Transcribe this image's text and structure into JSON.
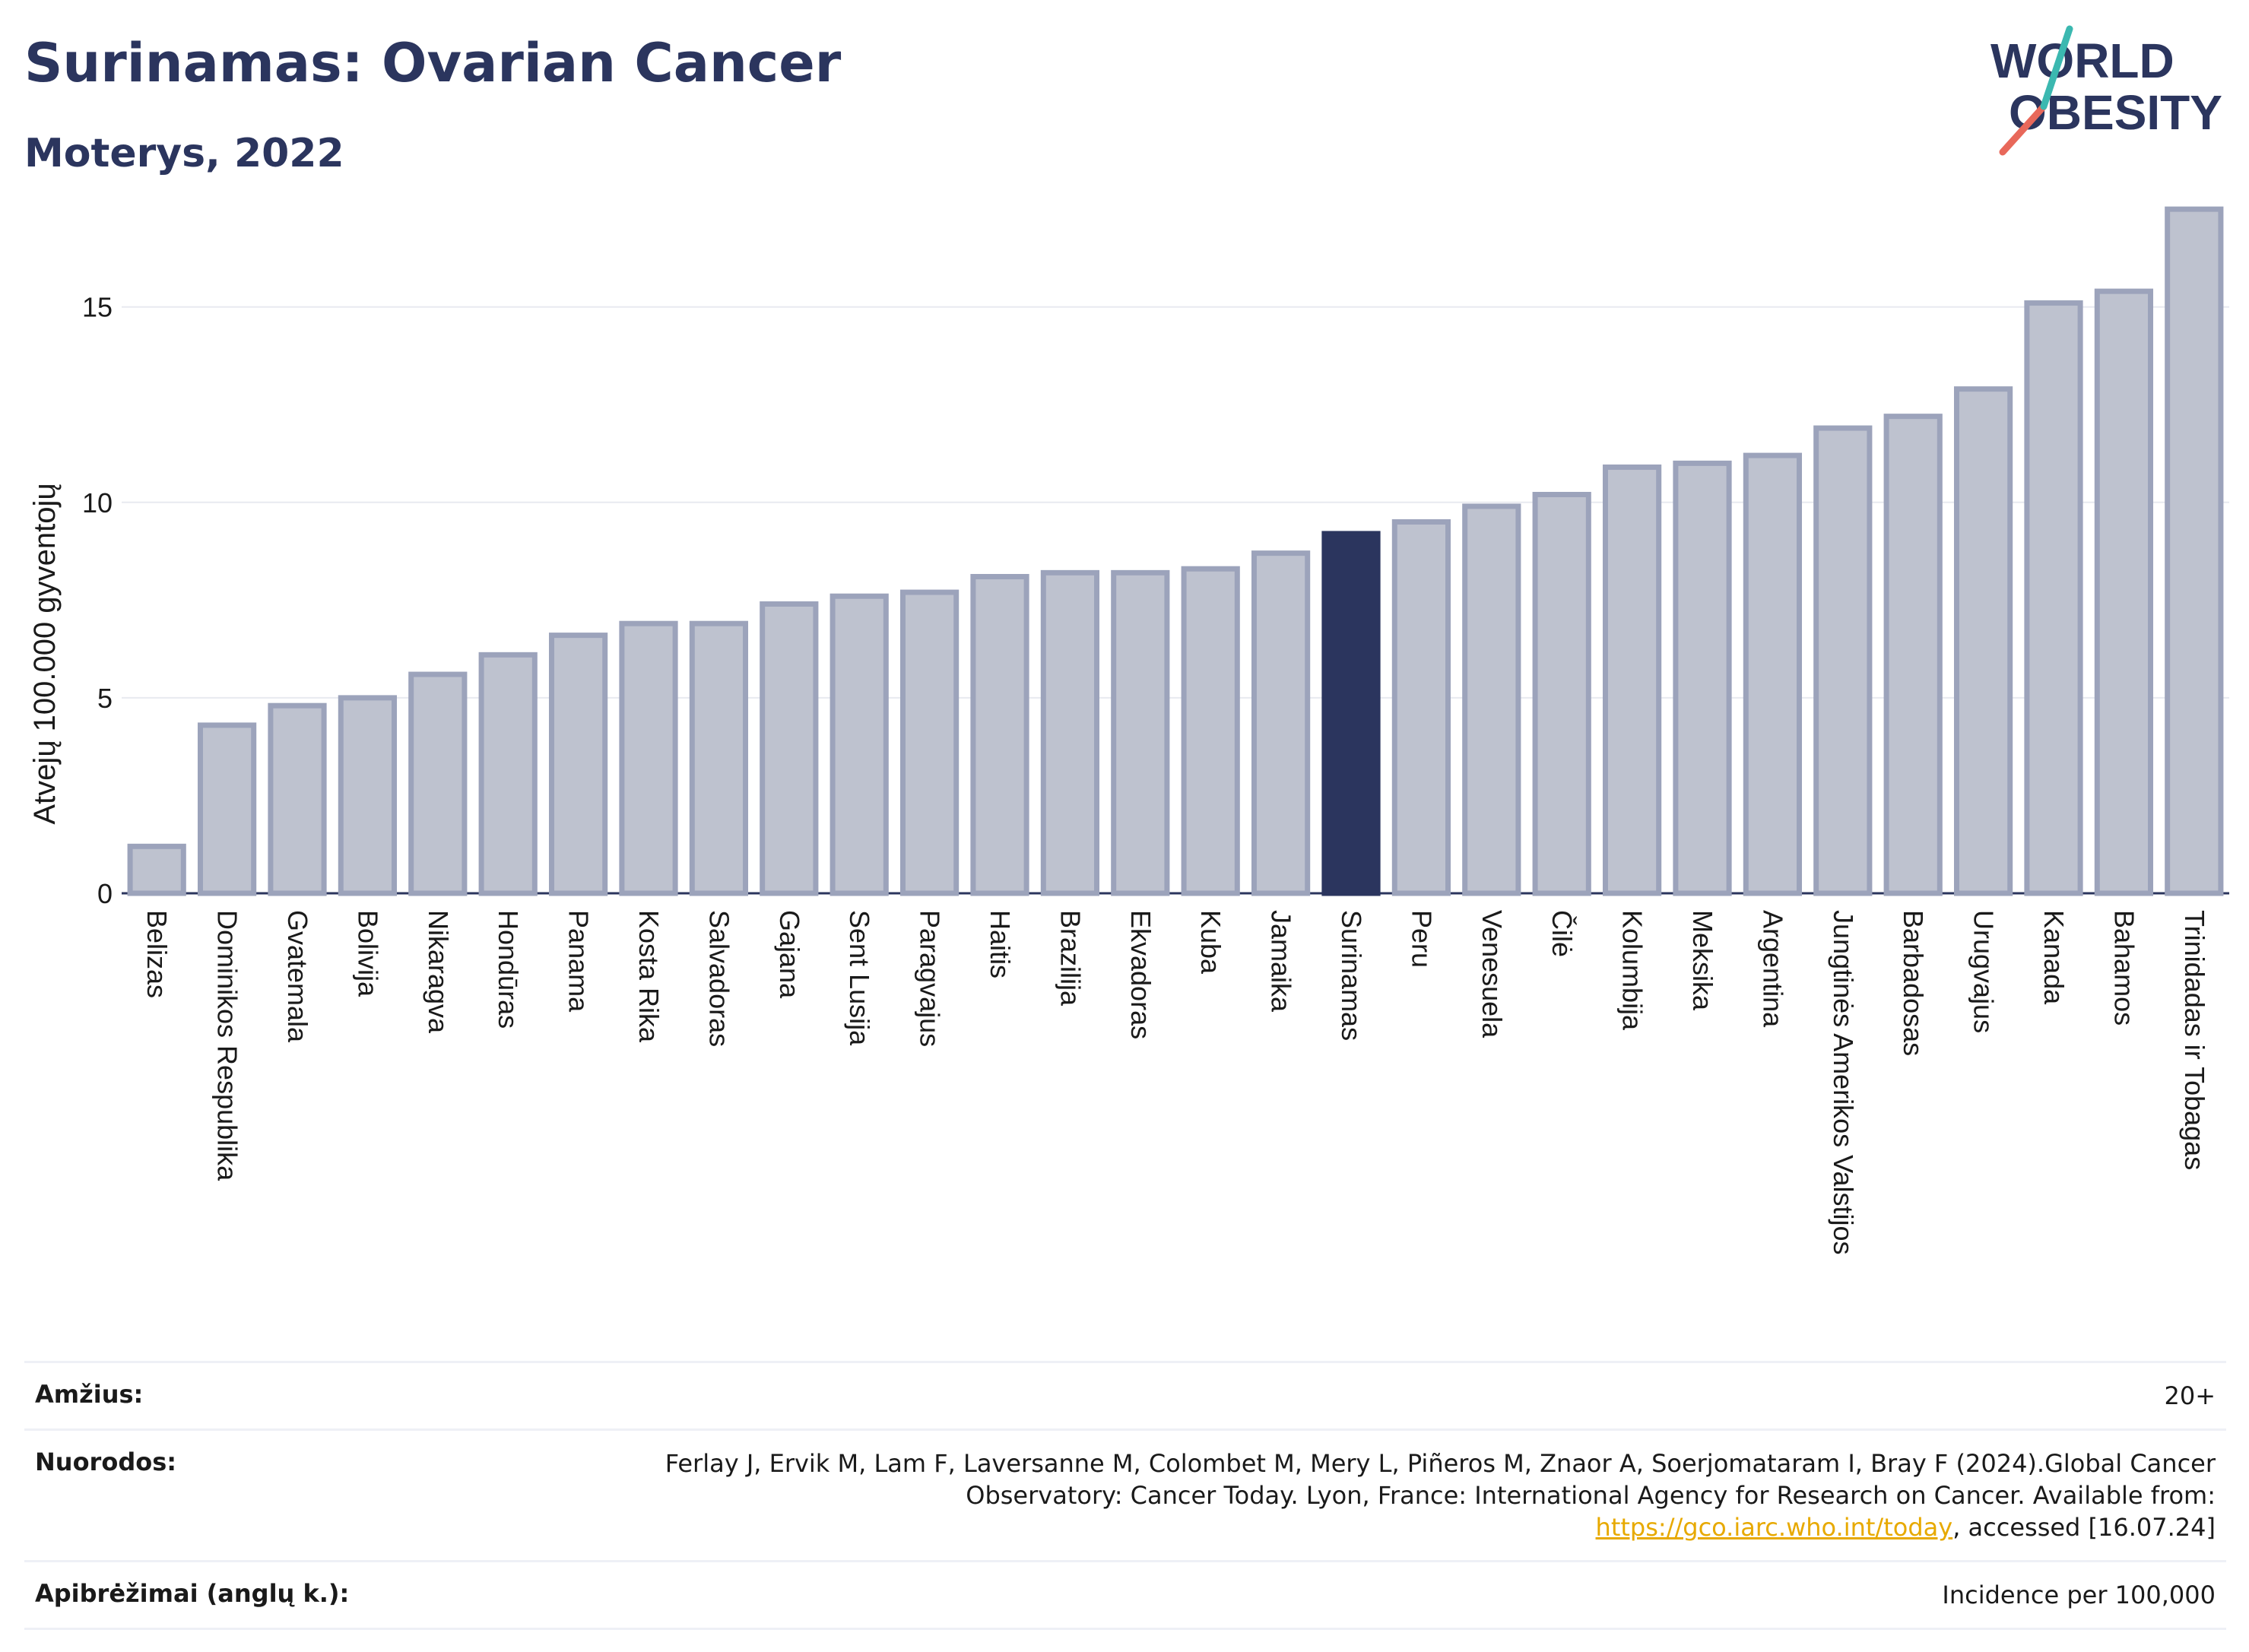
{
  "title": "Surinamas: Ovarian Cancer",
  "subtitle": "Moterys, 2022",
  "logo": {
    "line1": "WORLD",
    "line2": "OBESITY"
  },
  "colors": {
    "bar": "#bec2cf",
    "bar_border": "#9ca3bb",
    "highlight": "#2b355e",
    "grid": "#e8eaf0",
    "axis": "#2b355e"
  },
  "chart_data": {
    "type": "bar",
    "ylabel": "Atvejų 100.000 gyventojų",
    "ylim": [
      0,
      17.6
    ],
    "yticks": [
      0,
      5,
      10,
      15
    ],
    "highlight": "Surinamas",
    "categories": [
      "Belizas",
      "Dominikos Respublika",
      "Gvatemala",
      "Bolivija",
      "Nikaragva",
      "Hondūras",
      "Panama",
      "Kosta Rika",
      "Salvadoras",
      "Gajana",
      "Sent Lusija",
      "Paragvajus",
      "Haitis",
      "Brazilija",
      "Ekvadoras",
      "Kuba",
      "Jamaika",
      "Surinamas",
      "Peru",
      "Venesuela",
      "Čilė",
      "Kolumbija",
      "Meksika",
      "Argentina",
      "Jungtinės Amerikos Valstijos",
      "Barbadosas",
      "Urugvajus",
      "Kanada",
      "Bahamos",
      "Trinidadas ir Tobagas"
    ],
    "values": [
      1.2,
      4.3,
      4.8,
      5.0,
      5.6,
      6.1,
      6.6,
      6.9,
      6.9,
      7.4,
      7.6,
      7.7,
      8.1,
      8.2,
      8.2,
      8.3,
      8.7,
      9.2,
      9.5,
      9.9,
      10.2,
      10.9,
      11.0,
      11.2,
      11.9,
      12.2,
      12.9,
      15.1,
      15.4,
      17.5
    ]
  },
  "footer": {
    "age_label": "Amžius:",
    "age_value": "20+",
    "refs_label": "Nuorodos:",
    "refs_text": "Ferlay J, Ervik M, Lam F, Laversanne M, Colombet M, Mery L, Piñeros M, Znaor A, Soerjomataram I, Bray F (2024).Global Cancer Observatory: Cancer Today. Lyon, France: International Agency for Research on Cancer. Available from: ",
    "refs_link": "https://gco.iarc.who.int/today",
    "refs_after": ", accessed [16.07.24]",
    "def_label": "Apibrėžimai (anglų k.):",
    "def_value": "Incidence per 100,000"
  }
}
